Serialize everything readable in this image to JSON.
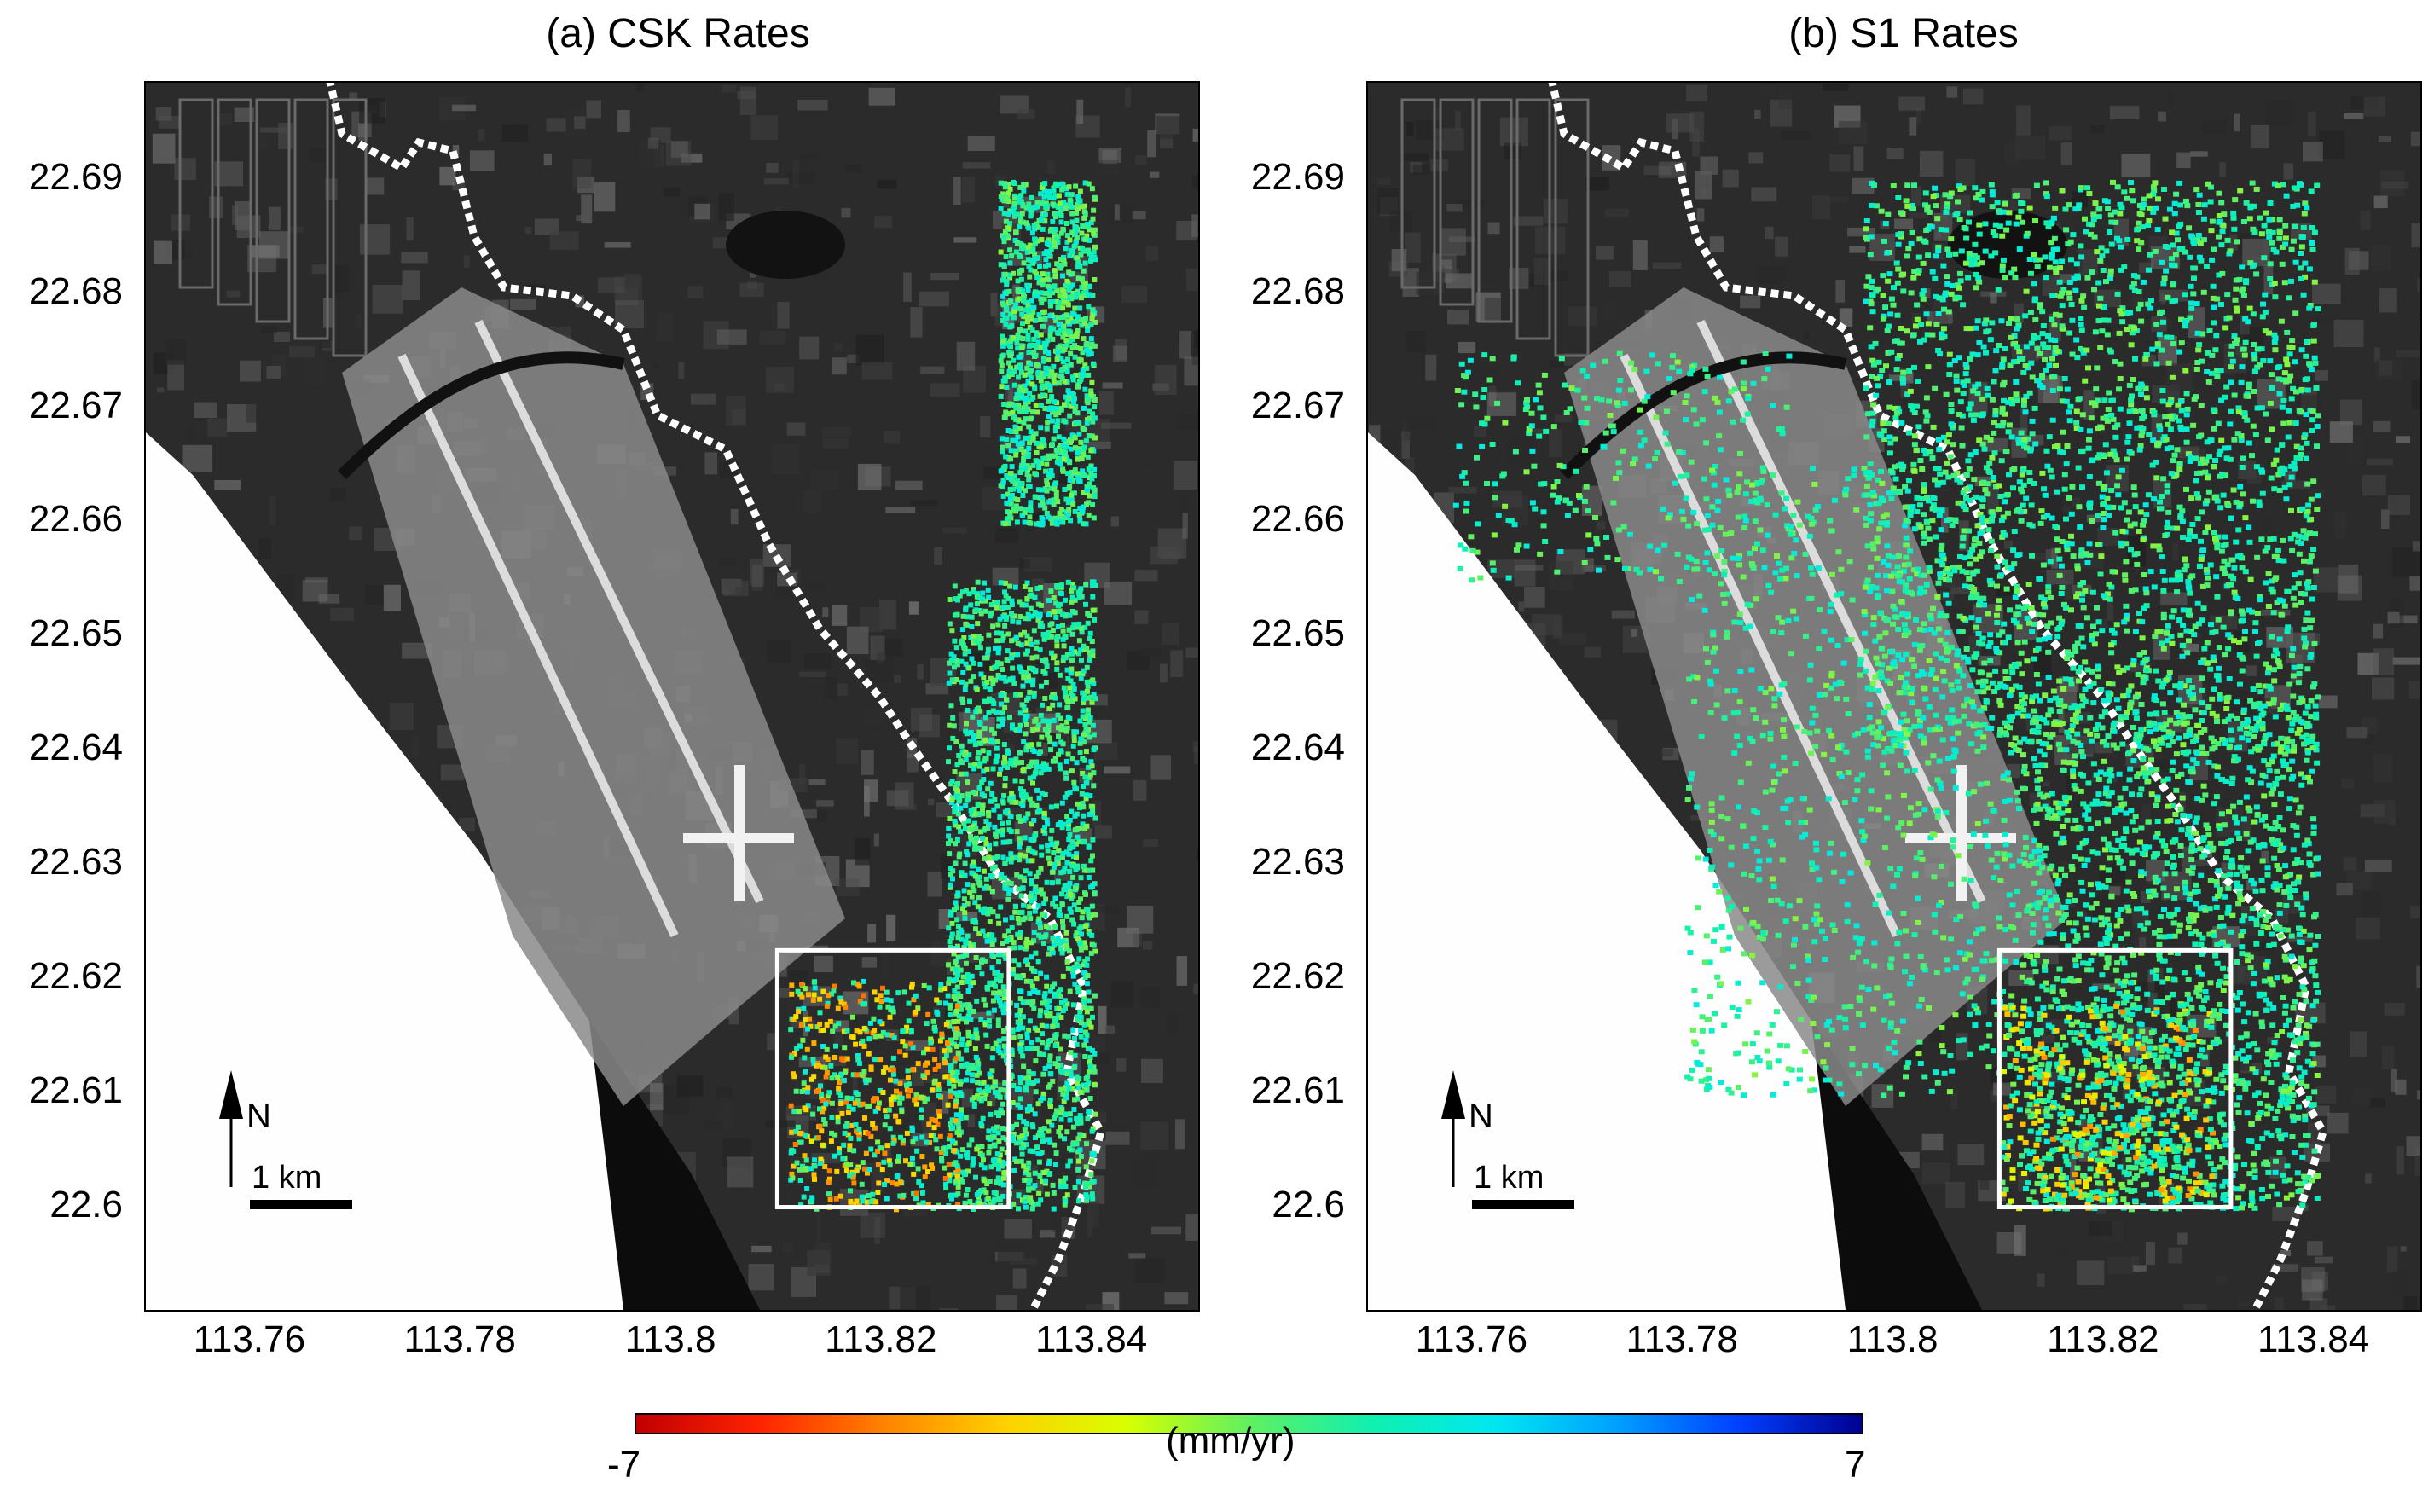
{
  "panels": [
    {
      "id": "csk",
      "title": "(a) CSK Rates"
    },
    {
      "id": "s1",
      "title": "(b) S1 Rates"
    }
  ],
  "axes": {
    "y_ticks": [
      "22.69",
      "22.68",
      "22.67",
      "22.66",
      "22.65",
      "22.64",
      "22.63",
      "22.62",
      "22.61",
      "22.6"
    ],
    "x_ticks": [
      "113.76",
      "113.78",
      "113.8",
      "113.82",
      "113.84"
    ],
    "xlim": [
      113.75,
      113.85
    ],
    "ylim": [
      22.591,
      22.6985
    ]
  },
  "map_elements": {
    "north_label": "N",
    "scale_label": "1 km"
  },
  "colorbar": {
    "min_label": "-7",
    "max_label": "7",
    "unit_label": "(mm/yr)",
    "range": [
      -7,
      7
    ],
    "colors": [
      "#c00000",
      "#ff2200",
      "#ff8000",
      "#ffd000",
      "#d8ff00",
      "#60f060",
      "#10f0b0",
      "#00e8f0",
      "#00a0ff",
      "#0040ff",
      "#000090"
    ]
  },
  "study_area_box": {
    "lon": [
      113.81,
      113.832
    ],
    "lat": [
      22.6,
      22.6225
    ]
  },
  "chart_data": [
    {
      "type": "scatter",
      "title": "(a) CSK Rates",
      "description_units": "lon/lat degrees; deformation rate mm/yr",
      "coverage_lon": [
        113.826,
        113.84
      ],
      "coverage_lat": [
        22.6,
        22.69
      ],
      "xlim": [
        113.75,
        113.85
      ],
      "ylim": [
        22.591,
        22.6985
      ],
      "value_range": [
        -7,
        7
      ]
    },
    {
      "type": "scatter",
      "title": "(b) S1 Rates",
      "description_units": "lon/lat degrees; deformation rate mm/yr",
      "coverage_lon": [
        113.758,
        113.84
      ],
      "coverage_lat": [
        22.6,
        22.69
      ],
      "xlim": [
        113.75,
        113.85
      ],
      "ylim": [
        22.591,
        22.6985
      ],
      "value_range": [
        -7,
        7
      ]
    }
  ]
}
